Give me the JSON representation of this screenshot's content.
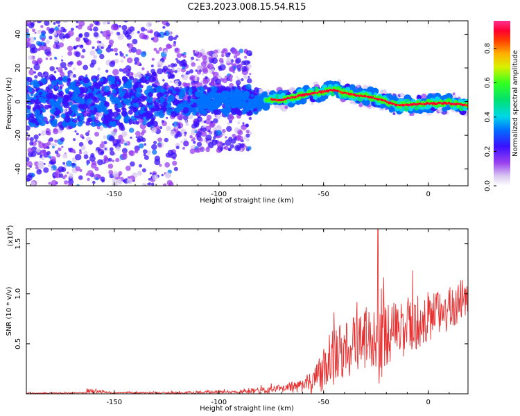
{
  "figure": {
    "title": "C2E3.2023.008.15.54.R15"
  },
  "chart_data": [
    {
      "type": "heatmap",
      "title": "C2E3.2023.008.15.54.R15",
      "xlabel": "Height of straight line (km)",
      "ylabel": "Frequency (Hz)",
      "xlim": [
        -192,
        19
      ],
      "ylim": [
        -50,
        48
      ],
      "xticks": [
        -150,
        -100,
        -50,
        0
      ],
      "yticks": [
        -40,
        -20,
        0,
        20,
        40
      ],
      "colorbar": {
        "label": "Normalized spectral amplitude",
        "range": [
          0,
          0.96
        ],
        "ticks": [
          0.0,
          0.2,
          0.4,
          0.6,
          0.8
        ],
        "colormap": "rainbow"
      },
      "ridge": {
        "description": "Doppler ridge: scattered noise below -90 km, coherent trace above -80 km",
        "x": [
          -120,
          -100,
          -80,
          -70,
          -60,
          -50,
          -45,
          -40,
          -30,
          -25,
          -20,
          -15,
          -10,
          0,
          10,
          18
        ],
        "y": [
          0,
          1,
          1,
          1,
          4,
          6,
          7,
          5,
          3,
          2,
          0,
          -2,
          -2,
          -1,
          -1,
          -2
        ]
      }
    },
    {
      "type": "line",
      "xlabel": "Height of straight line (km)",
      "ylabel": "SNR (10 * v/v)",
      "yscale_label": "(x10",
      "yscale_exp": "4",
      "xlim": [
        -192,
        19
      ],
      "ylim": [
        0,
        1.65
      ],
      "xticks": [
        -150,
        -100,
        -50,
        0
      ],
      "yticks": [
        0.5,
        1.0,
        1.5
      ],
      "ytick_labels": [
        "0.5",
        "1.0",
        "1.5"
      ],
      "series": [
        {
          "color": "#e83030",
          "envelope": {
            "x": [
              -192,
              -165,
              -163,
              -150,
              -120,
              -100,
              -90,
              -80,
              -70,
              -60,
              -55,
              -50,
              -45,
              -40,
              -35,
              -30,
              -25,
              -24,
              -20,
              -15,
              -10,
              -5,
              0,
              5,
              10,
              15,
              19
            ],
            "baseline": [
              0.005,
              0.01,
              0.03,
              0.01,
              0.01,
              0.02,
              0.02,
              0.03,
              0.05,
              0.08,
              0.12,
              0.22,
              0.35,
              0.42,
              0.5,
              0.55,
              0.6,
              0.62,
              0.58,
              0.62,
              0.68,
              0.72,
              0.75,
              0.8,
              0.85,
              0.9,
              0.95
            ],
            "amplitude": [
              0.01,
              0.01,
              0.05,
              0.01,
              0.02,
              0.03,
              0.03,
              0.06,
              0.08,
              0.12,
              0.25,
              0.4,
              0.5,
              0.55,
              0.55,
              0.55,
              0.6,
              1.0,
              0.55,
              0.55,
              0.55,
              0.5,
              0.5,
              0.45,
              0.4,
              0.35,
              0.25
            ]
          }
        }
      ]
    }
  ]
}
